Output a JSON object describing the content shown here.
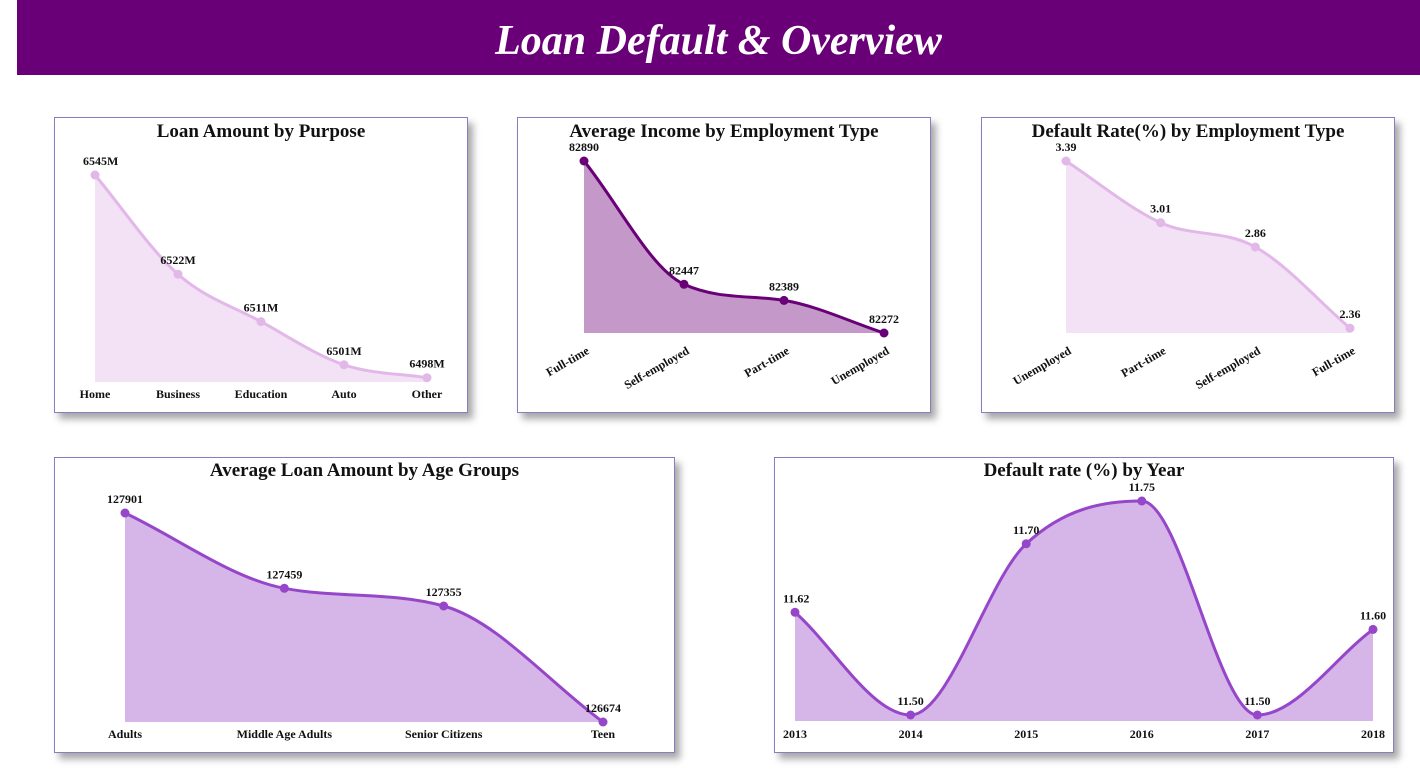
{
  "page": {
    "title": "Loan Default & Overview"
  },
  "chart_data": [
    {
      "id": "purpose",
      "type": "area",
      "title": "Loan Amount by Purpose",
      "categories": [
        "Home",
        "Business",
        "Education",
        "Auto",
        "Other"
      ],
      "values": [
        6545,
        6522,
        6511,
        6501,
        6498
      ],
      "labels": [
        "6545M",
        "6522M",
        "6511M",
        "6501M",
        "6498M"
      ],
      "colors": {
        "fill": "#f3e1f5",
        "line": "#e2b8e8",
        "marker": "#e2b8e8"
      }
    },
    {
      "id": "income",
      "type": "area",
      "title": "Average Income by Employment Type",
      "categories": [
        "Full-time",
        "Self-employed",
        "Part-time",
        "Unemployed"
      ],
      "values": [
        82890,
        82447,
        82389,
        82272
      ],
      "labels": [
        "82890",
        "82447",
        "82389",
        "82272"
      ],
      "colors": {
        "fill": "#c499c9",
        "line": "#6a0078",
        "marker": "#6a0078"
      }
    },
    {
      "id": "default_emp",
      "type": "area",
      "title": "Default Rate(%) by Employment Type",
      "categories": [
        "Unemployed",
        "Part-time",
        "Self-employed",
        "Full-time"
      ],
      "values": [
        3.39,
        3.01,
        2.86,
        2.36
      ],
      "labels": [
        "3.39",
        "3.01",
        "2.86",
        "2.36"
      ],
      "colors": {
        "fill": "#f3e1f5",
        "line": "#e2b8e8",
        "marker": "#e2b8e8"
      }
    },
    {
      "id": "age",
      "type": "area",
      "title": "Average Loan Amount by Age Groups",
      "categories": [
        "Adults",
        "Middle Age Adults",
        "Senior Citizens",
        "Teen"
      ],
      "values": [
        127901,
        127459,
        127355,
        126674
      ],
      "labels": [
        "127901",
        "127459",
        "127355",
        "126674"
      ],
      "colors": {
        "fill": "#d6b5e9",
        "line": "#9646c8",
        "marker": "#9646c8"
      }
    },
    {
      "id": "year",
      "type": "area",
      "title": "Default rate (%) by Year",
      "categories": [
        "2013",
        "2014",
        "2015",
        "2016",
        "2017",
        "2018"
      ],
      "values": [
        11.62,
        11.5,
        11.7,
        11.75,
        11.5,
        11.6
      ],
      "labels": [
        "11.62",
        "11.50",
        "11.70",
        "11.75",
        "11.50",
        "11.60"
      ],
      "colors": {
        "fill": "#d6b5e9",
        "line": "#9646c8",
        "marker": "#9646c8"
      }
    }
  ]
}
